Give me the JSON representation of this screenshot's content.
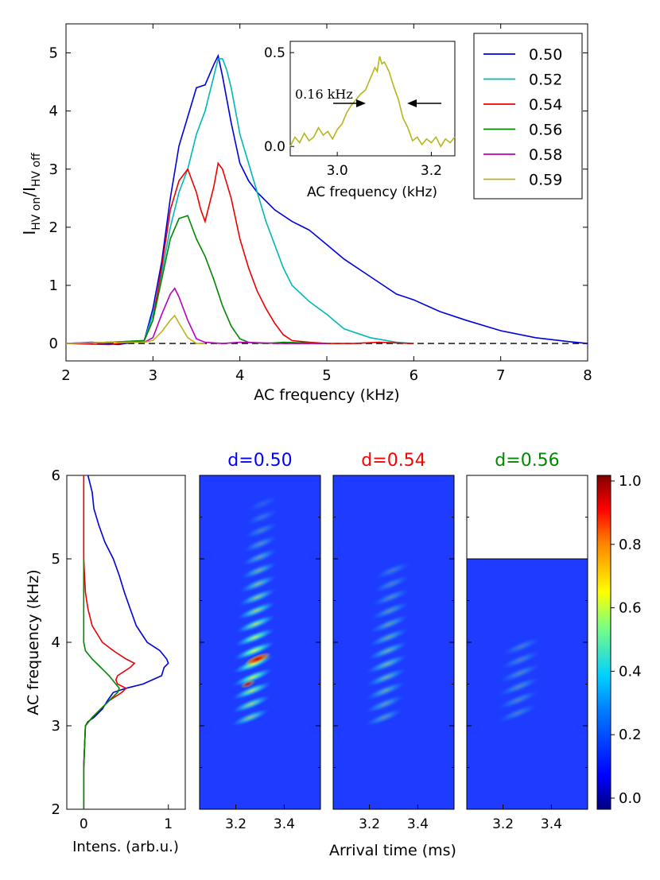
{
  "chart_data": [
    {
      "type": "line",
      "id": "main",
      "xlabel": "AC frequency (kHz)",
      "ylabel": {
        "main": "I",
        "sub_on": "HV on",
        "sep": "/I",
        "sub_off": "HV off"
      },
      "xlim": [
        2,
        8
      ],
      "ylim": [
        -0.3,
        5.5
      ],
      "xticks": [
        2,
        3,
        4,
        5,
        6,
        7,
        8
      ],
      "yticks": [
        0,
        1,
        2,
        3,
        4,
        5
      ],
      "baseline": 0,
      "legend": {
        "placement": "top-right",
        "entries": [
          "0.50",
          "0.52",
          "0.54",
          "0.56",
          "0.58",
          "0.59"
        ]
      },
      "series": [
        {
          "name": "0.50",
          "color": "#0000dd",
          "x": [
            2.0,
            2.3,
            2.6,
            2.9,
            3.0,
            3.1,
            3.2,
            3.3,
            3.4,
            3.5,
            3.6,
            3.7,
            3.75,
            3.8,
            3.9,
            4.0,
            4.1,
            4.2,
            4.4,
            4.6,
            4.8,
            5.0,
            5.2,
            5.5,
            5.8,
            6.0,
            6.3,
            6.6,
            7.0,
            7.4,
            7.8,
            8.0
          ],
          "y": [
            0.0,
            0.02,
            -0.02,
            0.05,
            0.6,
            1.4,
            2.5,
            3.4,
            3.9,
            4.4,
            4.45,
            4.8,
            4.95,
            4.6,
            3.8,
            3.1,
            2.8,
            2.6,
            2.3,
            2.1,
            1.95,
            1.7,
            1.45,
            1.15,
            0.85,
            0.75,
            0.55,
            0.4,
            0.22,
            0.1,
            0.03,
            0.0
          ]
        },
        {
          "name": "0.52",
          "color": "#00b8b8",
          "x": [
            2.0,
            2.5,
            2.9,
            3.0,
            3.1,
            3.2,
            3.3,
            3.4,
            3.5,
            3.6,
            3.7,
            3.75,
            3.8,
            3.85,
            3.9,
            4.0,
            4.1,
            4.2,
            4.3,
            4.4,
            4.5,
            4.6,
            4.8,
            5.0,
            5.2,
            5.5,
            5.8,
            6.0
          ],
          "y": [
            0.0,
            0.02,
            0.05,
            0.5,
            1.2,
            2.0,
            2.6,
            3.0,
            3.6,
            4.0,
            4.6,
            4.9,
            4.9,
            4.7,
            4.4,
            3.6,
            3.1,
            2.6,
            2.1,
            1.7,
            1.3,
            1.0,
            0.72,
            0.5,
            0.25,
            0.1,
            0.02,
            0.0
          ]
        },
        {
          "name": "0.54",
          "color": "#ee0000",
          "x": [
            2.0,
            2.5,
            2.9,
            3.0,
            3.1,
            3.2,
            3.3,
            3.4,
            3.5,
            3.55,
            3.6,
            3.7,
            3.75,
            3.8,
            3.9,
            4.0,
            4.1,
            4.2,
            4.3,
            4.4,
            4.5,
            4.6,
            4.8,
            5.0,
            5.3,
            5.6,
            6.0
          ],
          "y": [
            0.0,
            -0.02,
            0.05,
            0.4,
            1.3,
            2.3,
            2.8,
            3.0,
            2.6,
            2.3,
            2.1,
            2.7,
            3.1,
            3.0,
            2.5,
            1.8,
            1.3,
            0.9,
            0.6,
            0.35,
            0.15,
            0.05,
            0.02,
            0.0,
            0.0,
            0.02,
            0.0
          ]
        },
        {
          "name": "0.56",
          "color": "#008800",
          "x": [
            2.0,
            2.5,
            2.9,
            3.0,
            3.1,
            3.2,
            3.3,
            3.4,
            3.5,
            3.6,
            3.7,
            3.8,
            3.9,
            4.0,
            4.1,
            4.3,
            4.5,
            5.0
          ],
          "y": [
            0.0,
            0.02,
            0.05,
            0.4,
            1.1,
            1.8,
            2.15,
            2.2,
            1.8,
            1.5,
            1.1,
            0.65,
            0.3,
            0.08,
            0.02,
            0.0,
            0.02,
            0.0
          ]
        },
        {
          "name": "0.58",
          "color": "#bb00bb",
          "x": [
            2.0,
            2.5,
            2.9,
            3.0,
            3.1,
            3.2,
            3.25,
            3.3,
            3.4,
            3.5,
            3.6,
            3.8,
            4.0,
            4.5,
            5.0
          ],
          "y": [
            0.0,
            0.02,
            0.02,
            0.1,
            0.5,
            0.85,
            0.95,
            0.8,
            0.4,
            0.08,
            0.02,
            0.0,
            0.02,
            0.0,
            0.0
          ]
        },
        {
          "name": "0.59",
          "color": "#b5b51c",
          "x": [
            2.0,
            2.5,
            2.9,
            3.0,
            3.1,
            3.2,
            3.25,
            3.3,
            3.4,
            3.5,
            3.6
          ],
          "y": [
            0.0,
            0.02,
            0.02,
            0.05,
            0.2,
            0.4,
            0.48,
            0.35,
            0.1,
            0.0,
            0.0
          ]
        }
      ]
    },
    {
      "type": "line",
      "id": "inset",
      "xlabel": "AC frequency (kHz)",
      "xlim": [
        2.9,
        3.25
      ],
      "ylim": [
        -0.05,
        0.56
      ],
      "xticks": [
        3.0,
        3.2
      ],
      "xtick_labels": [
        "3.0",
        "3.2"
      ],
      "yticks": [
        0.0,
        0.5
      ],
      "ytick_labels": [
        "0.0",
        "0.5"
      ],
      "annotation": "0.16 kHz",
      "series": [
        {
          "name": "0.59",
          "color": "#b5b51c",
          "x": [
            2.9,
            2.91,
            2.92,
            2.93,
            2.94,
            2.95,
            2.96,
            2.97,
            2.98,
            2.99,
            3.0,
            3.01,
            3.02,
            3.03,
            3.04,
            3.05,
            3.06,
            3.07,
            3.08,
            3.085,
            3.09,
            3.095,
            3.1,
            3.11,
            3.12,
            3.13,
            3.14,
            3.15,
            3.16,
            3.17,
            3.18,
            3.19,
            3.2,
            3.21,
            3.22,
            3.23,
            3.24,
            3.25
          ],
          "y": [
            0.0,
            0.05,
            0.02,
            0.07,
            0.03,
            0.05,
            0.1,
            0.06,
            0.08,
            0.04,
            0.09,
            0.12,
            0.18,
            0.22,
            0.25,
            0.28,
            0.3,
            0.36,
            0.42,
            0.4,
            0.48,
            0.44,
            0.45,
            0.4,
            0.32,
            0.25,
            0.15,
            0.1,
            0.03,
            0.05,
            0.01,
            0.04,
            0.02,
            0.05,
            0.0,
            0.04,
            0.02,
            0.05
          ]
        }
      ]
    },
    {
      "type": "line",
      "id": "intensity",
      "xlabel": "Intens. (arb.u.)",
      "ylabel": "AC frequency (kHz)",
      "xlim": [
        -0.2,
        1.2
      ],
      "ylim": [
        2,
        6
      ],
      "xticks": [
        0,
        1
      ],
      "yticks": [
        2,
        3,
        4,
        5,
        6
      ],
      "series": [
        {
          "name": "d=0.50",
          "color": "#0000dd",
          "y": [
            6.0,
            5.8,
            5.6,
            5.4,
            5.2,
            5.0,
            4.8,
            4.6,
            4.4,
            4.2,
            4.0,
            3.9,
            3.8,
            3.75,
            3.7,
            3.6,
            3.5,
            3.45,
            3.4,
            3.3,
            3.2,
            3.1,
            3.05,
            3.0,
            2.5,
            2.0
          ],
          "x": [
            0.05,
            0.1,
            0.12,
            0.18,
            0.25,
            0.35,
            0.42,
            0.48,
            0.55,
            0.62,
            0.75,
            0.9,
            0.98,
            1.0,
            0.95,
            0.92,
            0.7,
            0.5,
            0.35,
            0.28,
            0.22,
            0.12,
            0.05,
            0.02,
            0.0,
            0.0
          ]
        },
        {
          "name": "d=0.54",
          "color": "#ee0000",
          "y": [
            6.0,
            5.0,
            4.6,
            4.4,
            4.2,
            4.0,
            3.9,
            3.8,
            3.75,
            3.7,
            3.6,
            3.55,
            3.5,
            3.45,
            3.4,
            3.3,
            3.2,
            3.1,
            3.0,
            2.5,
            2.0
          ],
          "x": [
            0.0,
            0.0,
            0.02,
            0.05,
            0.1,
            0.22,
            0.35,
            0.5,
            0.6,
            0.55,
            0.4,
            0.38,
            0.4,
            0.5,
            0.45,
            0.3,
            0.2,
            0.1,
            0.02,
            0.0,
            0.0
          ]
        },
        {
          "name": "d=0.56",
          "color": "#008800",
          "y": [
            5.0,
            4.5,
            4.0,
            3.9,
            3.8,
            3.7,
            3.6,
            3.5,
            3.45,
            3.4,
            3.3,
            3.2,
            3.1,
            3.0,
            2.5,
            2.0
          ],
          "x": [
            0.0,
            0.0,
            0.0,
            0.02,
            0.1,
            0.2,
            0.3,
            0.38,
            0.42,
            0.4,
            0.3,
            0.2,
            0.1,
            0.02,
            0.0,
            0.0
          ]
        }
      ]
    },
    {
      "type": "heatmap",
      "id": "spectra",
      "xlabel": "Arrival time (ms)",
      "xlim": [
        3.05,
        3.55
      ],
      "ylim": [
        2,
        6
      ],
      "xticks": [
        3.2,
        3.4
      ],
      "xtick_labels": [
        "3.2",
        "3.4"
      ],
      "panels": [
        {
          "title": "d=0.50",
          "title_color": "#0000ff",
          "y_max": 6,
          "peak_y": 3.8,
          "intensity": 1.0,
          "stripe_start": 3.1,
          "stripe_end": 5.6
        },
        {
          "title": "d=0.54",
          "title_color": "#ff0000",
          "y_max": 6,
          "peak_y": 3.75,
          "intensity": 0.55,
          "stripe_start": 3.1,
          "stripe_end": 4.8
        },
        {
          "title": "d=0.56",
          "title_color": "#008800",
          "y_max": 5,
          "peak_y": 3.5,
          "intensity": 0.35,
          "stripe_start": 3.15,
          "stripe_end": 3.9
        }
      ],
      "colorbar": {
        "ticks": [
          0.0,
          0.2,
          0.4,
          0.6,
          0.8,
          1.0
        ],
        "tick_labels": [
          "0.0",
          "0.2",
          "0.4",
          "0.6",
          "0.8",
          "1.0"
        ]
      }
    }
  ]
}
